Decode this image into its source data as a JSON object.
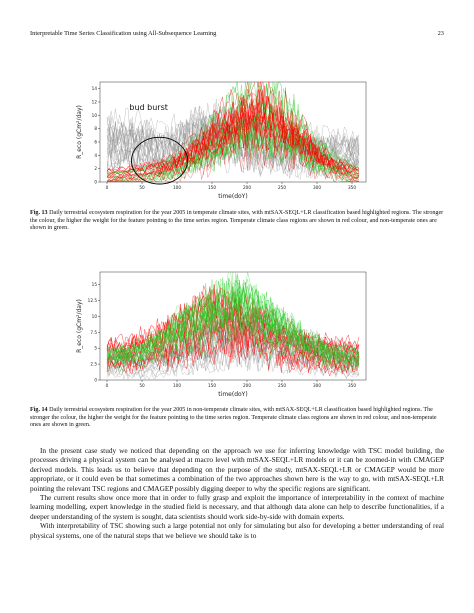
{
  "header": {
    "title": "Interpretable Time Series Classification using All-Subsequence Learning",
    "page": "23"
  },
  "chart_data": [
    {
      "type": "line",
      "xlabel": "time(doY)",
      "ylabel": "R_eco (gCm²/day)",
      "xticks": [
        0,
        50,
        100,
        150,
        200,
        250,
        300,
        350
      ],
      "yticks": [
        0,
        2,
        4,
        6,
        8,
        10,
        12,
        14
      ],
      "xlim": [
        -10,
        370
      ],
      "ylim": [
        0,
        15
      ],
      "annotation": "bud burst",
      "series": [
        {
          "color": "#ff0000",
          "values": [
            1,
            1,
            1.2,
            1.3,
            1.5,
            1.8,
            2.2,
            2.6,
            3.4,
            4.2,
            5.2,
            6.3,
            7.2,
            8.3,
            9,
            9.8,
            10.2,
            9.6,
            8.9,
            8.1,
            7.2,
            6,
            4.8,
            3.6,
            2.7,
            2,
            1.5,
            1.2
          ]
        },
        {
          "color": "#22cc22",
          "values": [
            0.5,
            0.6,
            0.7,
            0.9,
            1.1,
            1.4,
            1.8,
            2.5,
            3.2,
            4,
            5,
            6.1,
            7.3,
            8.4,
            9.6,
            10.5,
            11.2,
            10.9,
            10.2,
            9.3,
            8.2,
            6.8,
            5.5,
            4.2,
            3.1,
            2.2,
            1.6,
            1.1
          ]
        },
        {
          "color": "#888888",
          "values": [
            6.8,
            6.5,
            6.2,
            6,
            5.8,
            5.5,
            5.2,
            5.4,
            6.1,
            6.8,
            7.2,
            7.5,
            7.8,
            7.6,
            7.3,
            7,
            6.6,
            6.2,
            5.8,
            5.5,
            5.2,
            5,
            4.9,
            4.8,
            4.8,
            4.7,
            4.7,
            4.7
          ]
        }
      ]
    },
    {
      "type": "line",
      "xlabel": "time(doY)",
      "ylabel": "R_eco (gCm²/day)",
      "xticks": [
        0,
        50,
        100,
        150,
        200,
        250,
        300,
        350
      ],
      "yticks": [
        0,
        2.5,
        5,
        7.5,
        10,
        12.5,
        15
      ],
      "xlim": [
        -10,
        370
      ],
      "ylim": [
        0,
        17
      ],
      "series": [
        {
          "color": "#22cc22",
          "values": [
            3,
            3.2,
            3.5,
            3.8,
            4.3,
            5,
            5.8,
            6.8,
            7.5,
            8.2,
            9,
            9.8,
            10.5,
            11.2,
            11.6,
            11,
            10.2,
            9.2,
            8.3,
            7.3,
            6.3,
            5.5,
            4.8,
            4.2,
            3.7,
            3.3,
            3.1,
            3
          ]
        },
        {
          "color": "#ff0000",
          "values": [
            4,
            4.1,
            4.3,
            4.6,
            5,
            5.6,
            6.2,
            6.8,
            7.4,
            8.1,
            8.8,
            9.3,
            9.6,
            9.4,
            8.9,
            8.4,
            7.8,
            7.1,
            6.5,
            5.9,
            5.4,
            5,
            4.6,
            4.3,
            4.1,
            4,
            4,
            4
          ]
        },
        {
          "color": "#888888",
          "values": [
            3.2,
            3,
            2.8,
            2.7,
            2.8,
            3,
            3.4,
            3.8,
            4.2,
            4.8,
            5.4,
            6,
            6.5,
            6.9,
            7.1,
            7,
            6.8,
            6.4,
            6,
            5.6,
            5.1,
            4.7,
            4.3,
            3.9,
            3.6,
            3.3,
            3.1,
            3
          ]
        }
      ]
    }
  ],
  "fig13": {
    "label": "Fig. 13",
    "text": "Daily terrestrial ecosystem respiration for the year 2005 in temperate climate sites, with mtSAX-SEQL+LR classification based highlighted regions. The stronger the colour, the higher the weight for the feature pointing to the time series region. Temperate climate class regions are shown in red colour, and non-temperate ones are shown in green."
  },
  "fig14": {
    "label": "Fig. 14",
    "text": "Daily terrestrial ecosystem respiration for the year 2005 in non-temperate climate sites, with mtSAX-SEQL+LR classification based highlighted regions. The stronger the colour, the higher the weight for the feature pointing to the time series region. Temperate climate class regions are shown in red colour, and non-temperate ones are shown in green."
  },
  "body": {
    "p1": "In the present case study we noticed that depending on the approach we use for inferring knowledge with TSC model building, the processes driving a physical system can be analysed at macro level with mtSAX-SEQL+LR models or it can be zoomed-in with CMAGEP derived models. This leads us to believe that depending on the purpose of the study, mtSAX-SEQL+LR or CMAGEP would be more appropriate, or it could even be that sometimes a combination of the two approaches shown here is the way to go, with mtSAX-SEQL+LR pointing the relevant TSC regions and CMAGEP possibly digging deeper to why the specific regions are significant.",
    "p2": "The current results show once more that in order to fully grasp and exploit the importance of interpretability in the context of machine learning modelling, expert knowledge in the studied field is necessary, and that although data alone can help to describe functionalities, if a deeper understanding of the system is sought, data scientists should work side-by-side with domain experts.",
    "p3": "With interpretability of TSC showing such a large potential not only for simulating but also for developing a better understanding of real physical systems, one of the natural steps that we believe we should take is to"
  }
}
